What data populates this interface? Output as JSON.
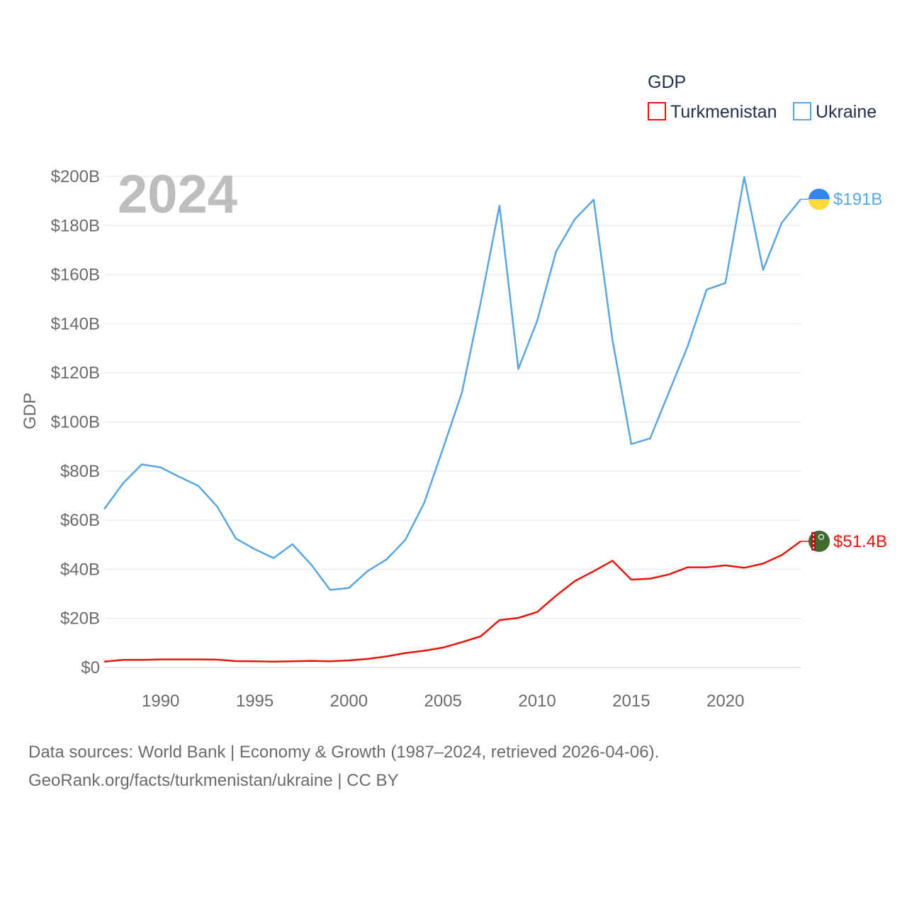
{
  "chart_data": {
    "type": "line",
    "title": "",
    "ylabel": "GDP",
    "xlabel": "",
    "ylim": [
      0,
      200
    ],
    "xlim": [
      1987,
      2024
    ],
    "y_ticks": [
      {
        "value": 0,
        "label": "$0"
      },
      {
        "value": 20,
        "label": "$20B"
      },
      {
        "value": 40,
        "label": "$40B"
      },
      {
        "value": 60,
        "label": "$60B"
      },
      {
        "value": 80,
        "label": "$80B"
      },
      {
        "value": 100,
        "label": "$100B"
      },
      {
        "value": 120,
        "label": "$120B"
      },
      {
        "value": 140,
        "label": "$140B"
      },
      {
        "value": 160,
        "label": "$160B"
      },
      {
        "value": 180,
        "label": "$180B"
      },
      {
        "value": 200,
        "label": "$200B"
      }
    ],
    "x_ticks": [
      {
        "value": 1990,
        "label": "1990"
      },
      {
        "value": 1995,
        "label": "1995"
      },
      {
        "value": 2000,
        "label": "2000"
      },
      {
        "value": 2005,
        "label": "2005"
      },
      {
        "value": 2010,
        "label": "2010"
      },
      {
        "value": 2015,
        "label": "2015"
      },
      {
        "value": 2020,
        "label": "2020"
      }
    ],
    "x": [
      1987,
      1988,
      1989,
      1990,
      1991,
      1992,
      1993,
      1994,
      1995,
      1996,
      1997,
      1998,
      1999,
      2000,
      2001,
      2002,
      2003,
      2004,
      2005,
      2006,
      2007,
      2008,
      2009,
      2010,
      2011,
      2012,
      2013,
      2014,
      2015,
      2016,
      2017,
      2018,
      2019,
      2020,
      2021,
      2022,
      2023,
      2024
    ],
    "legend_title": "GDP",
    "legend_position": "top-right",
    "year_label": "2024",
    "series": [
      {
        "name": "Turkmenistan",
        "color": "#e8140c",
        "end_label": "$51.4B",
        "flag": "turkmenistan-flag",
        "values": [
          2.4,
          3.1,
          3.1,
          3.3,
          3.3,
          3.3,
          3.2,
          2.6,
          2.5,
          2.4,
          2.5,
          2.7,
          2.5,
          2.9,
          3.5,
          4.5,
          5.9,
          6.8,
          8.1,
          10.3,
          12.7,
          19.3,
          20.2,
          22.6,
          29.2,
          35.2,
          39.2,
          43.5,
          35.8,
          36.2,
          37.9,
          40.8,
          40.8,
          41.6,
          40.6,
          42.3,
          45.8,
          51.4
        ]
      },
      {
        "name": "Ukraine",
        "color": "#5aa5e4",
        "end_label": "$191B",
        "flag": "ukraine-flag",
        "values": [
          64.5,
          75.0,
          82.7,
          81.5,
          77.6,
          74.0,
          65.6,
          52.5,
          48.2,
          44.6,
          50.2,
          41.9,
          31.6,
          32.4,
          39.3,
          44.0,
          52.0,
          67.0,
          89.2,
          111.9,
          148.7,
          188.1,
          121.6,
          141.2,
          169.3,
          182.6,
          190.5,
          133.5,
          91.0,
          93.3,
          112.1,
          130.9,
          153.9,
          156.6,
          199.8,
          161.9,
          181.2,
          190.7
        ]
      }
    ]
  },
  "footer": {
    "line1": "Data sources: World Bank | Economy & Growth (1987–2024, retrieved 2026-04-06).",
    "line2": "GeoRank.org/facts/turkmenistan/ukraine | CC BY"
  }
}
